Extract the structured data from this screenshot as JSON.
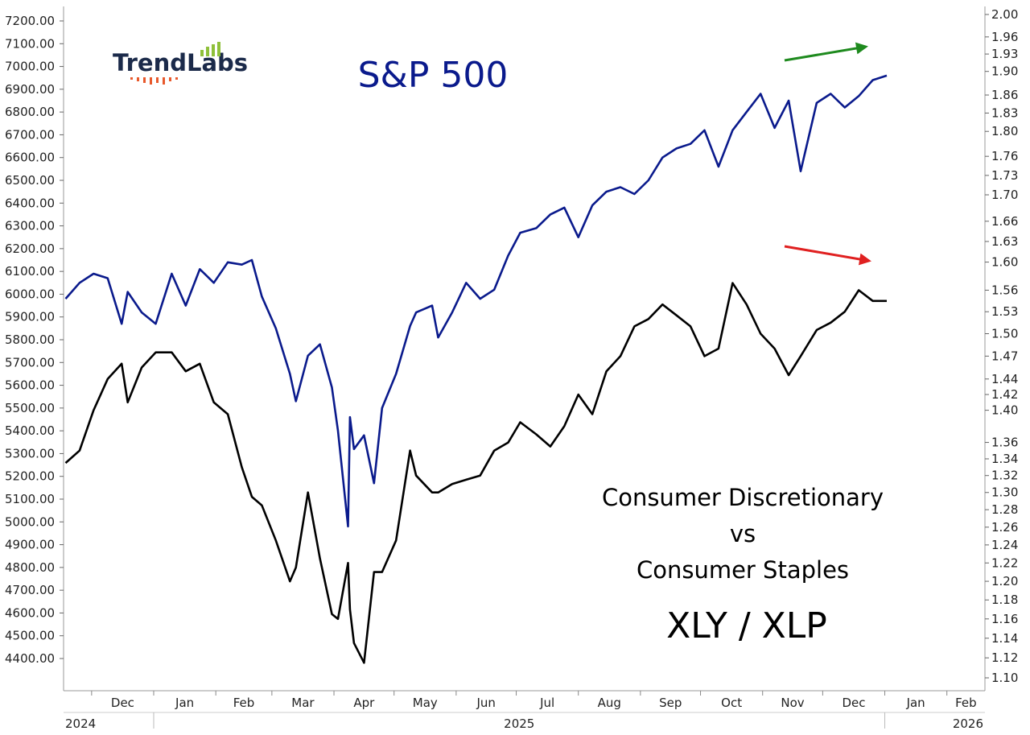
{
  "logo": {
    "text": "TrendLabs"
  },
  "titles": {
    "spx": "S&P 500",
    "ratio_line1": "Consumer Discretionary",
    "ratio_line2": "vs",
    "ratio_line3": "Consumer Staples",
    "ratio_ticker": "XLY / XLP"
  },
  "colors": {
    "spx": "#0a1a8c",
    "ratio": "#000000",
    "up_arrow": "#1e8a1e",
    "down_arrow": "#e02020",
    "logo_text": "#1b2a4a",
    "logo_bars": "#8fc03a",
    "logo_dots": "#e8592c"
  },
  "chart_data": [
    {
      "type": "line",
      "name": "S&P 500",
      "axis": "left",
      "ylim": [
        4320,
        7240
      ],
      "y_ticks": [
        "7200.00",
        "7100.00",
        "7000.00",
        "6900.00",
        "6800.00",
        "6700.00",
        "6600.00",
        "6500.00",
        "6400.00",
        "6300.00",
        "6200.00",
        "6100.00",
        "6000.00",
        "5900.00",
        "5800.00",
        "5700.00",
        "5600.00",
        "5500.00",
        "5400.00",
        "5300.00",
        "5200.00",
        "5100.00",
        "5000.00",
        "4900.00",
        "4800.00",
        "4700.00",
        "4600.00",
        "4500.00",
        "4400.00"
      ],
      "x": [
        "2024-11-18",
        "2024-11-25",
        "2024-12-02",
        "2024-12-09",
        "2024-12-16",
        "2024-12-19",
        "2024-12-26",
        "2025-01-02",
        "2025-01-10",
        "2025-01-17",
        "2025-01-24",
        "2025-01-31",
        "2025-02-07",
        "2025-02-14",
        "2025-02-19",
        "2025-02-24",
        "2025-03-03",
        "2025-03-10",
        "2025-03-13",
        "2025-03-19",
        "2025-03-25",
        "2025-03-31",
        "2025-04-03",
        "2025-04-08",
        "2025-04-09",
        "2025-04-11",
        "2025-04-16",
        "2025-04-21",
        "2025-04-25",
        "2025-05-02",
        "2025-05-09",
        "2025-05-12",
        "2025-05-20",
        "2025-05-23",
        "2025-05-30",
        "2025-06-06",
        "2025-06-13",
        "2025-06-20",
        "2025-06-27",
        "2025-07-03",
        "2025-07-11",
        "2025-07-18",
        "2025-07-25",
        "2025-08-01",
        "2025-08-08",
        "2025-08-15",
        "2025-08-22",
        "2025-08-29",
        "2025-09-05",
        "2025-09-12",
        "2025-09-19",
        "2025-09-26",
        "2025-10-03",
        "2025-10-10",
        "2025-10-17",
        "2025-10-24",
        "2025-10-31",
        "2025-11-07",
        "2025-11-14",
        "2025-11-20",
        "2025-11-28",
        "2025-12-05",
        "2025-12-12",
        "2025-12-19",
        "2025-12-26",
        "2026-01-02"
      ],
      "values": [
        5980,
        6050,
        6090,
        6070,
        5870,
        6010,
        5920,
        5870,
        6090,
        5950,
        6110,
        6050,
        6140,
        6130,
        6150,
        5990,
        5850,
        5650,
        5530,
        5730,
        5780,
        5590,
        5400,
        4980,
        5460,
        5320,
        5380,
        5170,
        5500,
        5650,
        5860,
        5920,
        5950,
        5810,
        5920,
        6050,
        5980,
        6020,
        6170,
        6270,
        6290,
        6350,
        6380,
        6250,
        6390,
        6450,
        6470,
        6440,
        6500,
        6600,
        6640,
        6660,
        6720,
        6560,
        6720,
        6800,
        6880,
        6730,
        6850,
        6540,
        6840,
        6880,
        6820,
        6870,
        6940,
        6960
      ]
    },
    {
      "type": "line",
      "name": "XLY / XLP",
      "axis": "right",
      "ylim": [
        1.095,
        2.007
      ],
      "y_ticks": [
        "2.00",
        "1.96",
        "1.93",
        "1.90",
        "1.86",
        "1.83",
        "1.80",
        "1.76",
        "1.73",
        "1.70",
        "1.66",
        "1.63",
        "1.60",
        "1.56",
        "1.53",
        "1.50",
        "1.47",
        "1.44",
        "1.42",
        "1.40",
        "1.36",
        "1.34",
        "1.32",
        "1.30",
        "1.28",
        "1.26",
        "1.24",
        "1.22",
        "1.20",
        "1.18",
        "1.16",
        "1.14",
        "1.12",
        "1.10"
      ],
      "x": [
        "2024-11-18",
        "2024-11-25",
        "2024-12-02",
        "2024-12-09",
        "2024-12-16",
        "2024-12-19",
        "2024-12-26",
        "2025-01-02",
        "2025-01-10",
        "2025-01-17",
        "2025-01-24",
        "2025-01-31",
        "2025-02-07",
        "2025-02-14",
        "2025-02-19",
        "2025-02-24",
        "2025-03-03",
        "2025-03-10",
        "2025-03-13",
        "2025-03-19",
        "2025-03-25",
        "2025-03-31",
        "2025-04-03",
        "2025-04-08",
        "2025-04-09",
        "2025-04-11",
        "2025-04-16",
        "2025-04-21",
        "2025-04-25",
        "2025-05-02",
        "2025-05-09",
        "2025-05-12",
        "2025-05-20",
        "2025-05-23",
        "2025-05-30",
        "2025-06-06",
        "2025-06-13",
        "2025-06-20",
        "2025-06-27",
        "2025-07-03",
        "2025-07-11",
        "2025-07-18",
        "2025-07-25",
        "2025-08-01",
        "2025-08-08",
        "2025-08-15",
        "2025-08-22",
        "2025-08-29",
        "2025-09-05",
        "2025-09-12",
        "2025-09-19",
        "2025-09-26",
        "2025-10-03",
        "2025-10-10",
        "2025-10-17",
        "2025-10-24",
        "2025-10-31",
        "2025-11-07",
        "2025-11-14",
        "2025-11-20",
        "2025-11-28",
        "2025-12-05",
        "2025-12-12",
        "2025-12-19",
        "2025-12-26",
        "2026-01-02"
      ],
      "values": [
        1.335,
        1.35,
        1.4,
        1.44,
        1.46,
        1.41,
        1.455,
        1.475,
        1.475,
        1.45,
        1.46,
        1.41,
        1.395,
        1.33,
        1.295,
        1.285,
        1.245,
        1.2,
        1.215,
        1.3,
        1.225,
        1.165,
        1.16,
        1.22,
        1.17,
        1.135,
        1.115,
        1.21,
        1.21,
        1.245,
        1.35,
        1.32,
        1.3,
        1.3,
        1.31,
        1.315,
        1.32,
        1.35,
        1.36,
        1.385,
        1.37,
        1.355,
        1.38,
        1.42,
        1.395,
        1.45,
        1.47,
        1.51,
        1.52,
        1.54,
        1.525,
        1.51,
        1.47,
        1.48,
        1.57,
        1.54,
        1.5,
        1.48,
        1.445,
        1.47,
        1.505,
        1.515,
        1.53,
        1.56,
        1.545,
        1.545
      ]
    }
  ],
  "x_axis": {
    "months": [
      "Dec",
      "Jan",
      "Feb",
      "Mar",
      "Apr",
      "May",
      "Jun",
      "Jul",
      "Aug",
      "Sep",
      "Oct",
      "Nov",
      "Dec",
      "Jan",
      "Feb"
    ],
    "years": [
      "2024",
      "2025",
      "2026"
    ]
  }
}
